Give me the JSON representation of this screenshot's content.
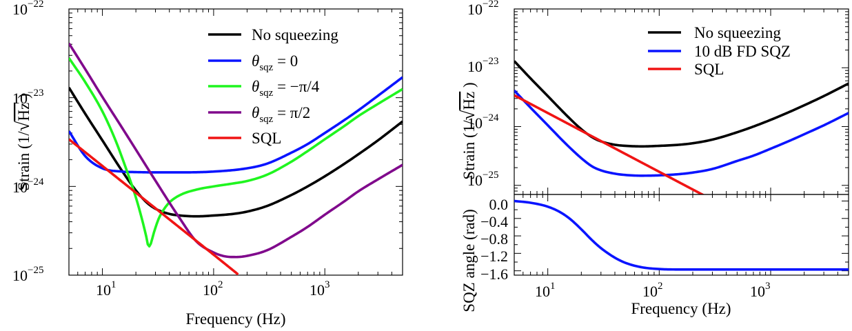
{
  "colors": {
    "black": "#000000",
    "blue": "#0a14ff",
    "green": "#1ff51f",
    "purple": "#800a8c",
    "red": "#f01414"
  },
  "chart_data": [
    {
      "type": "line",
      "xscale": "log",
      "yscale": "log",
      "xlim": [
        5,
        5000
      ],
      "ylim": [
        1e-25,
        1e-22
      ],
      "xlabel": "Frequency (Hz)",
      "ylabel": "Strain (1/√Hz )",
      "xticks": [
        10,
        100,
        1000
      ],
      "yticks": [
        1e-25,
        1e-24,
        1e-23,
        1e-22
      ],
      "legend_position": "top-right",
      "series": [
        {
          "name": "No squeezing",
          "color": "#000000",
          "x": [
            5,
            7,
            10,
            15,
            20,
            25,
            30,
            40,
            50,
            70,
            100,
            150,
            200,
            300,
            500,
            700,
            1000,
            1500,
            2000,
            3000,
            5000
          ],
          "y": [
            1.3e-23,
            6.6e-24,
            3.3e-24,
            1.5e-24,
            9e-25,
            6.6e-25,
            5.6e-25,
            4.9e-25,
            4.7e-25,
            4.6e-25,
            4.7e-25,
            4.9e-25,
            5.2e-25,
            6e-25,
            8e-25,
            1e-24,
            1.3e-24,
            1.8e-24,
            2.3e-24,
            3.3e-24,
            5.4e-24
          ]
        },
        {
          "name": "θsqz = 0",
          "color": "#0a14ff",
          "x": [
            5,
            7,
            10,
            15,
            20,
            30,
            50,
            100,
            200,
            300,
            500,
            700,
            1000,
            1500,
            2000,
            3000,
            5000
          ],
          "y": [
            4.2e-24,
            2.2e-24,
            1.6e-24,
            1.47e-24,
            1.45e-24,
            1.44e-24,
            1.44e-24,
            1.47e-24,
            1.6e-24,
            1.8e-24,
            2.4e-24,
            3e-24,
            4e-24,
            5.6e-24,
            7.2e-24,
            1.05e-23,
            1.7e-23
          ]
        },
        {
          "name": "θsqz = −π/4",
          "color": "#1ff51f",
          "x": [
            5,
            7,
            10,
            13,
            16,
            20,
            23,
            25,
            26,
            27,
            29,
            32,
            36,
            40,
            50,
            70,
            100,
            150,
            200,
            300,
            500,
            700,
            1000,
            1500,
            2000,
            3000,
            5000
          ],
          "y": [
            2.8e-23,
            1.5e-23,
            7e-24,
            3.4e-24,
            1.7e-24,
            7.5e-25,
            4e-25,
            2.6e-25,
            2.1e-25,
            2.2e-25,
            3e-25,
            4.3e-25,
            5.6e-25,
            6.6e-25,
            8e-25,
            9.2e-25,
            1e-24,
            1.08e-24,
            1.15e-24,
            1.35e-24,
            1.9e-24,
            2.5e-24,
            3.4e-24,
            4.8e-24,
            6.2e-24,
            8.5e-24,
            1.25e-23
          ]
        },
        {
          "name": "θsqz = π/2",
          "color": "#800a8c",
          "x": [
            5,
            7,
            10,
            15,
            20,
            30,
            50,
            70,
            100,
            130,
            160,
            200,
            300,
            500,
            700,
            1000,
            1500,
            2000,
            3000,
            5000
          ],
          "y": [
            4.1e-23,
            2.1e-23,
            1.02e-23,
            4.6e-24,
            2.6e-24,
            1.16e-24,
            4.3e-25,
            2.4e-25,
            1.8e-25,
            1.62e-25,
            1.6e-25,
            1.65e-25,
            1.9e-25,
            2.7e-25,
            3.5e-25,
            4.8e-25,
            6.8e-25,
            8.8e-25,
            1.2e-24,
            1.75e-24
          ]
        },
        {
          "name": "SQL",
          "color": "#f01414",
          "x": [
            5,
            10,
            20,
            50,
            100,
            166
          ],
          "y": [
            3.4e-24,
            1.7e-24,
            8.5e-25,
            3.4e-25,
            1.7e-25,
            1.02e-25
          ]
        }
      ]
    },
    {
      "type": "line",
      "xscale": "log",
      "yscale": "log",
      "xlim": [
        5,
        5000
      ],
      "ylim": [
        7e-26,
        1e-22
      ],
      "ylabel": "Strain (1/√Hz )",
      "yticks": [
        1e-25,
        1e-24,
        1e-23,
        1e-22
      ],
      "legend_position": "top-right",
      "series": [
        {
          "name": "No squeezing",
          "color": "#000000",
          "x": [
            5,
            7,
            10,
            15,
            20,
            25,
            30,
            40,
            50,
            70,
            100,
            150,
            200,
            300,
            500,
            700,
            1000,
            1500,
            2000,
            3000,
            5000
          ],
          "y": [
            1.3e-23,
            6.6e-24,
            3.3e-24,
            1.5e-24,
            9e-25,
            6.6e-25,
            5.6e-25,
            4.9e-25,
            4.7e-25,
            4.6e-25,
            4.7e-25,
            4.9e-25,
            5.2e-25,
            6e-25,
            8e-25,
            1e-24,
            1.3e-24,
            1.8e-24,
            2.3e-24,
            3.3e-24,
            5.4e-24
          ]
        },
        {
          "name": "10 dB FD SQZ",
          "color": "#0a14ff",
          "x": [
            5,
            7,
            10,
            15,
            20,
            25,
            30,
            40,
            50,
            70,
            100,
            150,
            200,
            300,
            500,
            700,
            1000,
            1500,
            2000,
            3000,
            5000
          ],
          "y": [
            4.1e-24,
            2.1e-24,
            1.05e-24,
            4.8e-25,
            2.9e-25,
            2.1e-25,
            1.8e-25,
            1.58e-25,
            1.5e-25,
            1.46e-25,
            1.48e-25,
            1.55e-25,
            1.65e-25,
            1.9e-25,
            2.6e-25,
            3.2e-25,
            4.2e-25,
            5.8e-25,
            7.4e-25,
            1.05e-24,
            1.7e-24
          ]
        },
        {
          "name": "SQL",
          "color": "#f01414",
          "x": [
            5,
            10,
            20,
            50,
            100,
            200,
            270
          ],
          "y": [
            3.4e-24,
            1.7e-24,
            8.5e-25,
            3.4e-25,
            1.7e-25,
            8.5e-26,
            6.3e-26
          ]
        }
      ]
    },
    {
      "type": "line",
      "xscale": "log",
      "yscale": "linear",
      "xlim": [
        5,
        5000
      ],
      "ylim": [
        -1.7,
        0.15
      ],
      "xlabel": "Frequency (Hz)",
      "ylabel": "SQZ angle (rad)",
      "xticks": [
        10,
        100,
        1000
      ],
      "yticks": [
        0.0,
        -0.4,
        -0.8,
        -1.2,
        -1.6
      ],
      "series": [
        {
          "color": "#0a14ff",
          "x": [
            5,
            7,
            10,
            13,
            16,
            20,
            25,
            30,
            40,
            50,
            70,
            100,
            150,
            200,
            500,
            1000,
            5000
          ],
          "y": [
            0.0,
            -0.04,
            -0.13,
            -0.26,
            -0.42,
            -0.65,
            -0.9,
            -1.08,
            -1.3,
            -1.42,
            -1.52,
            -1.56,
            -1.57,
            -1.57,
            -1.57,
            -1.57,
            -1.57
          ]
        }
      ]
    }
  ],
  "panels": {
    "left": {
      "ytick_labels": [
        "10",
        "10",
        "10",
        "10"
      ],
      "ytick_exps": [
        "−22",
        "−23",
        "−24",
        "−25"
      ],
      "xtick_labels": [
        "10",
        "10",
        "10"
      ],
      "xtick_exps": [
        "1",
        "2",
        "3"
      ],
      "xlabel": "Frequency (Hz)",
      "ylabel_pre": "Strain (1/",
      "ylabel_rad": "Hz",
      "ylabel_post": " )",
      "legend": [
        {
          "label": "No squeezing"
        },
        {
          "label_pre": "θ",
          "label_sub": "sqz",
          "label_post": " = 0"
        },
        {
          "label_pre": "θ",
          "label_sub": "sqz",
          "label_post": " = −π/4"
        },
        {
          "label_pre": "θ",
          "label_sub": "sqz",
          "label_post": " = π/2"
        },
        {
          "label": "SQL"
        }
      ]
    },
    "right_top": {
      "ytick_labels": [
        "10",
        "10",
        "10",
        "10"
      ],
      "ytick_exps": [
        "−22",
        "−23",
        "−24",
        "−25"
      ],
      "ylabel_pre": "Strain (1/",
      "ylabel_rad": "Hz",
      "ylabel_post": " )",
      "legend": [
        "No squeezing",
        "10 dB FD SQZ",
        "SQL"
      ]
    },
    "right_bottom": {
      "ytick_labels": [
        "0.0",
        "−0.4",
        "−0.8",
        "−1.2",
        "−1.6"
      ],
      "xtick_labels": [
        "10",
        "10",
        "10"
      ],
      "xtick_exps": [
        "1",
        "2",
        "3"
      ],
      "xlabel": "Frequency (Hz)",
      "ylabel": "SQZ angle (rad)"
    }
  }
}
